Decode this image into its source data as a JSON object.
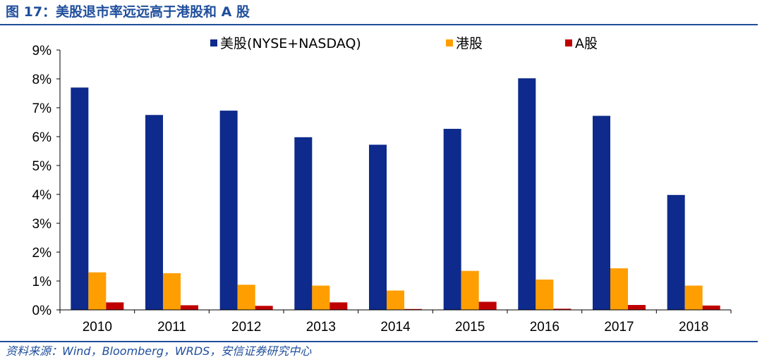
{
  "figure_title": "图 17：美股退市率远远高于港股和 A 股",
  "source_note": "资料来源：Wind，Bloomberg，WRDS，安信证券研究中心",
  "chart_data": {
    "type": "bar",
    "categories": [
      "2010",
      "2011",
      "2012",
      "2013",
      "2014",
      "2015",
      "2016",
      "2017",
      "2018"
    ],
    "series": [
      {
        "name": "美股(NYSE+NASDAQ)",
        "color": "#0d2a8c",
        "values": [
          7.7,
          6.75,
          6.9,
          5.98,
          5.72,
          6.27,
          8.02,
          6.72,
          3.98
        ]
      },
      {
        "name": "港股",
        "color": "#ff9e00",
        "values": [
          1.3,
          1.27,
          0.87,
          0.84,
          0.67,
          1.35,
          1.05,
          1.44,
          0.84
        ]
      },
      {
        "name": "A股",
        "color": "#c00000",
        "values": [
          0.26,
          0.16,
          0.14,
          0.26,
          0.03,
          0.28,
          0.04,
          0.17,
          0.15
        ]
      }
    ],
    "yticks": [
      "0%",
      "1%",
      "2%",
      "3%",
      "4%",
      "5%",
      "6%",
      "7%",
      "8%",
      "9%"
    ],
    "ylim": [
      0,
      9
    ],
    "legend_position": "top-center",
    "grid": false
  }
}
